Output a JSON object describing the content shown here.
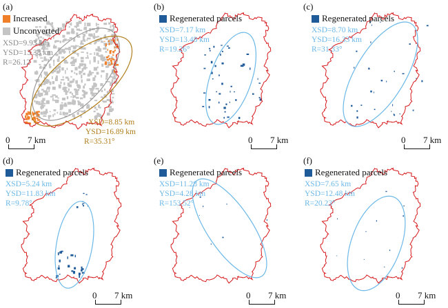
{
  "colors": {
    "boundary": "#d7191c",
    "increased": "#f07f2a",
    "unconverted": "#c4c4c4",
    "regenerated": "#1f5a99",
    "ellipse_a_gray": "#9a9a9a",
    "ellipse_a_brown": "#b07d1a",
    "ellipse_blue": "#6bb8e8",
    "stats_gray": "#8a8a8a",
    "stats_brown": "#b07d1a",
    "stats_blue": "#6bb8e8"
  },
  "scale_bar": {
    "zero": "0",
    "distance": "7 km"
  },
  "panels": [
    {
      "id": "a",
      "label": "(a)",
      "legend": [
        {
          "swatch": "increased",
          "label": "Increased"
        },
        {
          "swatch": "unconverted",
          "label": "Unconverted"
        }
      ],
      "stats_unconverted": [
        "XSD=9.93 km",
        "YSD=13.38 km",
        "R=26.12"
      ],
      "stats_increased": [
        "XSD=8.85 km",
        "YSD=16.89 km",
        "R=35.31°"
      ]
    },
    {
      "id": "b",
      "label": "(b)",
      "legend": [
        {
          "swatch": "regenerated",
          "label": "Regenerated parcels"
        }
      ],
      "stats": [
        "XSD=7.17 km",
        "YSD=13.48 km",
        "R=19.26°"
      ]
    },
    {
      "id": "c",
      "label": "(c)",
      "legend": [
        {
          "swatch": "regenerated",
          "label": "Regenerated parcels"
        }
      ],
      "stats": [
        "XSD=8.70 km",
        "YSD=16.33 km",
        "R=31.33°"
      ]
    },
    {
      "id": "d",
      "label": "(d)",
      "legend": [
        {
          "swatch": "regenerated",
          "label": "Regenerated parcels"
        }
      ],
      "stats": [
        "XSD=5.24 km",
        "YSD=11.83 km",
        "R=9.78°"
      ]
    },
    {
      "id": "e",
      "label": "(e)",
      "legend": [
        {
          "swatch": "regenerated",
          "label": "Regenerated parcels"
        }
      ],
      "stats": [
        "XSD=11.28 km",
        "YSD=4.28 km",
        "R=153.52°"
      ]
    },
    {
      "id": "f",
      "label": "(f)",
      "legend": [
        {
          "swatch": "regenerated",
          "label": "Regenerated parcels"
        }
      ],
      "stats": [
        "XSD=7.65 km",
        "YSD=12.48 km",
        "R=20.23°"
      ]
    }
  ]
}
